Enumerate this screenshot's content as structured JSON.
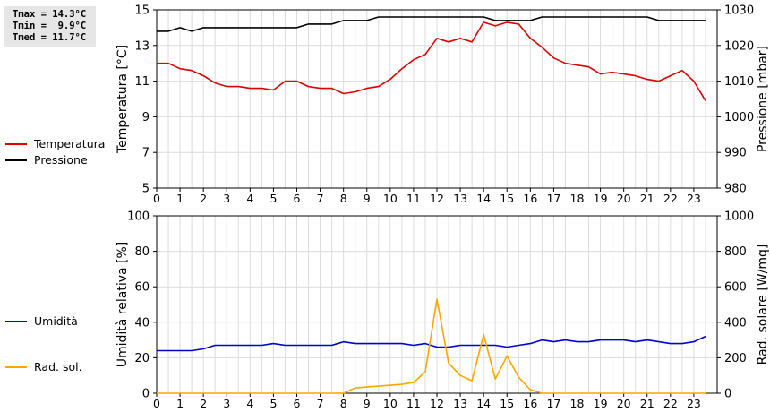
{
  "stats": {
    "tmax": "Tmax = 14.3°C",
    "tmin": "Tmin =  9.9°C",
    "tmed": "Tmed = 11.7°C"
  },
  "chart_data": [
    {
      "type": "line",
      "ylabel_left": "Temperatura [°C]",
      "ylabel_right": "Pressione [mbar]",
      "xlim": [
        0,
        24
      ],
      "ylim_left": [
        5,
        15
      ],
      "ylim_right": [
        980,
        1030
      ],
      "x_ticks": [
        "0",
        "1",
        "2",
        "3",
        "4",
        "5",
        "6",
        "7",
        "8",
        "9",
        "10",
        "11",
        "12",
        "13",
        "14",
        "15",
        "16",
        "17",
        "18",
        "19",
        "20",
        "21",
        "22",
        "23"
      ],
      "y_ticks_left": [
        "5",
        "7",
        "9",
        "11",
        "13",
        "15"
      ],
      "y_ticks_right": [
        "980",
        "990",
        "1000",
        "1010",
        "1020",
        "1030"
      ],
      "grid": true,
      "legend_position": "left",
      "series": [
        {
          "name": "Temperatura",
          "axis": "left",
          "color": "#dd0000",
          "x": [
            0,
            0.5,
            1,
            1.5,
            2,
            2.5,
            3,
            3.5,
            4,
            4.5,
            5,
            5.5,
            6,
            6.5,
            7,
            7.5,
            8,
            8.5,
            9,
            9.5,
            10,
            10.5,
            11,
            11.5,
            12,
            12.5,
            13,
            13.5,
            14,
            14.5,
            15,
            15.5,
            16,
            16.5,
            17,
            17.5,
            18,
            18.5,
            19,
            19.5,
            20,
            20.5,
            21,
            21.5,
            22,
            22.5,
            23,
            23.5
          ],
          "values": [
            12.0,
            12.0,
            11.7,
            11.6,
            11.3,
            10.9,
            10.7,
            10.7,
            10.6,
            10.6,
            10.5,
            11.0,
            11.0,
            10.7,
            10.6,
            10.6,
            10.3,
            10.4,
            10.6,
            10.7,
            11.1,
            11.7,
            12.2,
            12.5,
            13.4,
            13.2,
            13.4,
            13.2,
            14.3,
            14.1,
            14.3,
            14.2,
            13.4,
            12.9,
            12.3,
            12.0,
            11.9,
            11.8,
            11.4,
            11.5,
            11.4,
            11.3,
            11.1,
            11.0,
            11.3,
            11.6,
            11.0,
            9.9
          ]
        },
        {
          "name": "Pressione",
          "axis": "right",
          "color": "#000000",
          "x": [
            0,
            0.5,
            1,
            1.5,
            2,
            2.5,
            3,
            3.5,
            4,
            4.5,
            5,
            5.5,
            6,
            6.5,
            7,
            7.5,
            8,
            8.5,
            9,
            9.5,
            10,
            10.5,
            11,
            11.5,
            12,
            12.5,
            13,
            13.5,
            14,
            14.5,
            15,
            15.5,
            16,
            16.5,
            17,
            17.5,
            18,
            18.5,
            19,
            19.5,
            20,
            20.5,
            21,
            21.5,
            22,
            22.5,
            23,
            23.5
          ],
          "values": [
            1024,
            1024,
            1025,
            1024,
            1025,
            1025,
            1025,
            1025,
            1025,
            1025,
            1025,
            1025,
            1025,
            1026,
            1026,
            1026,
            1027,
            1027,
            1027,
            1028,
            1028,
            1028,
            1028,
            1028,
            1028,
            1028,
            1028,
            1028,
            1028,
            1027,
            1027,
            1027,
            1027,
            1028,
            1028,
            1028,
            1028,
            1028,
            1028,
            1028,
            1028,
            1028,
            1028,
            1027,
            1027,
            1027,
            1027,
            1027
          ]
        }
      ]
    },
    {
      "type": "line",
      "ylabel_left": "Umidità relativa [%]",
      "ylabel_right": "Rad. solare [W/mq]",
      "xlim": [
        0,
        24
      ],
      "ylim_left": [
        0,
        100
      ],
      "ylim_right": [
        0,
        1000
      ],
      "x_ticks": [
        "0",
        "1",
        "2",
        "3",
        "4",
        "5",
        "6",
        "7",
        "8",
        "9",
        "10",
        "11",
        "12",
        "13",
        "14",
        "15",
        "16",
        "17",
        "18",
        "19",
        "20",
        "21",
        "22",
        "23"
      ],
      "y_ticks_left": [
        "0",
        "20",
        "40",
        "60",
        "80",
        "100"
      ],
      "y_ticks_right": [
        "0",
        "200",
        "400",
        "600",
        "800",
        "1000"
      ],
      "grid": true,
      "legend_position": "left",
      "series": [
        {
          "name": "Umidità",
          "axis": "left",
          "color": "#0000cc",
          "x": [
            0,
            0.5,
            1,
            1.5,
            2,
            2.5,
            3,
            3.5,
            4,
            4.5,
            5,
            5.5,
            6,
            6.5,
            7,
            7.5,
            8,
            8.5,
            9,
            9.5,
            10,
            10.5,
            11,
            11.5,
            12,
            12.5,
            13,
            13.5,
            14,
            14.5,
            15,
            15.5,
            16,
            16.5,
            17,
            17.5,
            18,
            18.5,
            19,
            19.5,
            20,
            20.5,
            21,
            21.5,
            22,
            22.5,
            23,
            23.5
          ],
          "values": [
            24,
            24,
            24,
            24,
            25,
            27,
            27,
            27,
            27,
            27,
            28,
            27,
            27,
            27,
            27,
            27,
            29,
            28,
            28,
            28,
            28,
            28,
            27,
            28,
            26,
            26,
            27,
            27,
            27,
            27,
            26,
            27,
            28,
            30,
            29,
            30,
            29,
            29,
            30,
            30,
            30,
            29,
            30,
            29,
            28,
            28,
            29,
            32
          ]
        },
        {
          "name": "Rad. sol.",
          "axis": "right",
          "color": "#ffa500",
          "x": [
            0,
            0.5,
            1,
            1.5,
            2,
            2.5,
            3,
            3.5,
            4,
            4.5,
            5,
            5.5,
            6,
            6.5,
            7,
            7.5,
            8,
            8.5,
            9,
            9.5,
            10,
            10.5,
            11,
            11.5,
            12,
            12.5,
            13,
            13.5,
            14,
            14.5,
            15,
            15.5,
            16,
            16.5,
            17,
            17.5,
            18,
            18.5,
            19,
            19.5,
            20,
            20.5,
            21,
            21.5,
            22,
            22.5,
            23,
            23.5
          ],
          "values": [
            0,
            0,
            0,
            0,
            0,
            0,
            0,
            0,
            0,
            0,
            0,
            0,
            0,
            0,
            0,
            0,
            0,
            30,
            35,
            40,
            45,
            50,
            60,
            120,
            530,
            170,
            100,
            70,
            330,
            80,
            210,
            90,
            20,
            0,
            0,
            0,
            0,
            0,
            0,
            0,
            0,
            0,
            0,
            0,
            0,
            0,
            0,
            0
          ]
        }
      ]
    }
  ]
}
